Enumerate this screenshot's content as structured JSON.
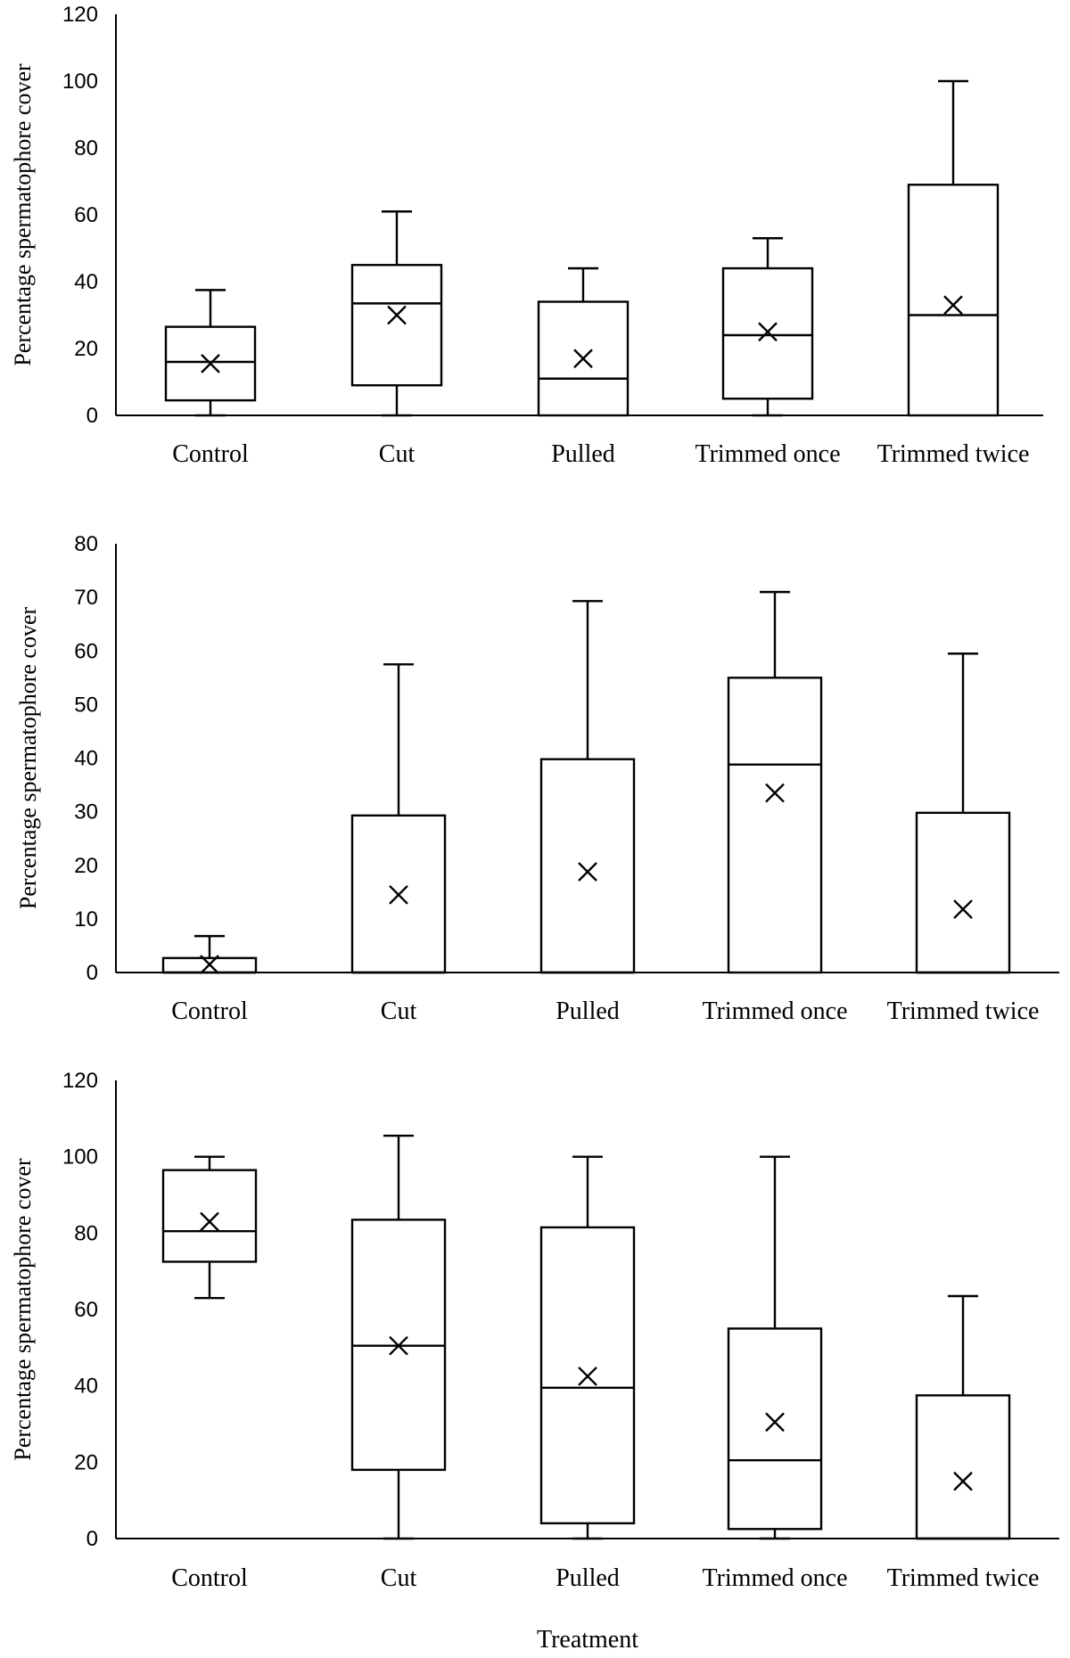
{
  "x_title": "Treatment",
  "chart_data": [
    {
      "type": "box",
      "ylabel": "Percentage spermatophore cover",
      "ylim": [
        0,
        120
      ],
      "yticks": [
        0,
        20,
        40,
        60,
        80,
        100,
        120
      ],
      "categories": [
        "Control",
        "Cut",
        "Pulled",
        "Trimmed once",
        "Trimmed twice"
      ],
      "boxes": [
        {
          "min": 0,
          "q1": 4.5,
          "median": 16,
          "q3": 26.5,
          "max": 37.5,
          "mean": 15.5
        },
        {
          "min": 0,
          "q1": 9,
          "median": 33.5,
          "q3": 45,
          "max": 61,
          "mean": 30
        },
        {
          "min": 0,
          "q1": 0,
          "median": 11,
          "q3": 34,
          "max": 44,
          "mean": 17
        },
        {
          "min": 0,
          "q1": 5,
          "median": 24,
          "q3": 44,
          "max": 53,
          "mean": 25
        },
        {
          "min": 0,
          "q1": 0,
          "median": 30,
          "q3": 69,
          "max": 100,
          "mean": 33
        }
      ]
    },
    {
      "type": "box",
      "ylabel": "Percentage spermatophore cover",
      "ylim": [
        0,
        80
      ],
      "yticks": [
        0,
        10,
        20,
        30,
        40,
        50,
        60,
        70,
        80
      ],
      "categories": [
        "Control",
        "Cut",
        "Pulled",
        "Trimmed once",
        "Trimmed twice"
      ],
      "boxes": [
        {
          "min": 0,
          "q1": 0,
          "median": 0,
          "q3": 2.7,
          "max": 6.8,
          "mean": 1.5
        },
        {
          "min": 0,
          "q1": 0,
          "median": 0,
          "q3": 29.3,
          "max": 57.5,
          "mean": 14.5
        },
        {
          "min": 0,
          "q1": 0,
          "median": 0,
          "q3": 39.8,
          "max": 69.3,
          "mean": 18.8
        },
        {
          "min": 0,
          "q1": 0,
          "median": 38.8,
          "q3": 55,
          "max": 71,
          "mean": 33.5
        },
        {
          "min": 0,
          "q1": 0,
          "median": 0,
          "q3": 29.8,
          "max": 59.5,
          "mean": 11.8
        }
      ]
    },
    {
      "type": "box",
      "ylabel": "Percentage spermatophore cover",
      "ylim": [
        0,
        120
      ],
      "yticks": [
        0,
        20,
        40,
        60,
        80,
        100,
        120
      ],
      "categories": [
        "Control",
        "Cut",
        "Pulled",
        "Trimmed once",
        "Trimmed twice"
      ],
      "boxes": [
        {
          "min": 63,
          "q1": 72.5,
          "median": 80.5,
          "q3": 96.5,
          "max": 100,
          "mean": 83
        },
        {
          "min": 0,
          "q1": 18,
          "median": 50.5,
          "q3": 83.5,
          "max": 105.5,
          "mean": 50.5
        },
        {
          "min": 0,
          "q1": 4,
          "median": 39.5,
          "q3": 81.5,
          "max": 100,
          "mean": 42.5
        },
        {
          "min": 0,
          "q1": 2.5,
          "median": 20.5,
          "q3": 55,
          "max": 100,
          "mean": 30.5
        },
        {
          "min": 0,
          "q1": 0,
          "median": 0,
          "q3": 37.5,
          "max": 63.5,
          "mean": 15
        }
      ]
    }
  ]
}
